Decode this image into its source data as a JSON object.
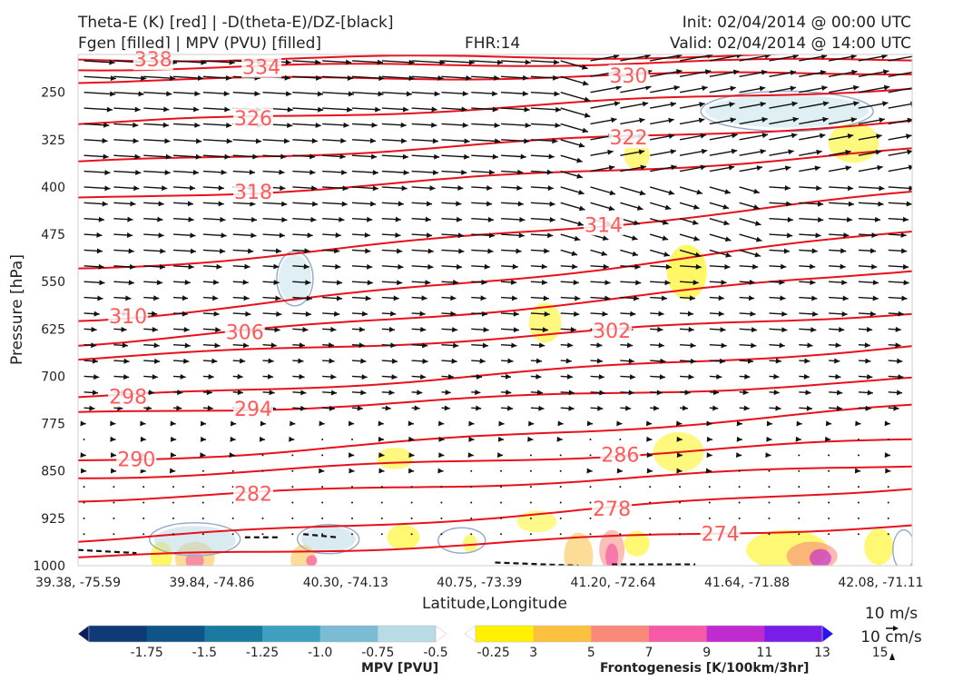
{
  "header": {
    "line1_left": "Theta-E (K) [red] | -D(theta-E)/DZ-[black]",
    "line2_left": "Fgen [filled] | MPV (PVU) [filled]",
    "fhr": "FHR:14",
    "init": "Init: 02/04/2014 @ 00:00 UTC",
    "valid": "Valid: 02/04/2014 @ 14:00 UTC"
  },
  "chart_data": {
    "type": "cross-section",
    "xlabel": "Latitude,Longitude",
    "ylabel": "Pressure [hPa]",
    "x_ticks": [
      "39.38, -75.59",
      "39.84, -74.86",
      "40.30, -74.13",
      "40.75, -73.39",
      "41.20, -72.64",
      "41.64, -71.88",
      "42.08, -71.11"
    ],
    "y_ticks": [
      250,
      325,
      400,
      475,
      550,
      625,
      700,
      775,
      850,
      925,
      1000
    ],
    "y_range": [
      1000,
      190
    ],
    "theta_e_contours": [
      {
        "value": 338,
        "label": "338"
      },
      {
        "value": 334,
        "label": "334"
      },
      {
        "value": 330,
        "label": "330"
      },
      {
        "value": 326,
        "label": "326"
      },
      {
        "value": 322,
        "label": "322"
      },
      {
        "value": 318,
        "label": "318"
      },
      {
        "value": 314,
        "label": "314"
      },
      {
        "value": 310,
        "label": "310"
      },
      {
        "value": 306,
        "label": "306"
      },
      {
        "value": 302,
        "label": "302"
      },
      {
        "value": 298,
        "label": "298"
      },
      {
        "value": 294,
        "label": "294"
      },
      {
        "value": 290,
        "label": "290"
      },
      {
        "value": 286,
        "label": "286"
      },
      {
        "value": 282,
        "label": "282"
      },
      {
        "value": 278,
        "label": "278"
      },
      {
        "value": 274,
        "label": "274"
      }
    ],
    "mpv_colorbar": {
      "title": "MPV [PVU]",
      "ticks": [
        "-1.75",
        "-1.5",
        "-1.25",
        "-1.0",
        "-0.75",
        "-0.5",
        "-0.25"
      ],
      "colors": [
        "#0b1e5e",
        "#0e3a78",
        "#0f5488",
        "#1a7aa0",
        "#3e9fc0",
        "#7bbcd4",
        "#b9dbe6",
        "#ffffff"
      ]
    },
    "fgen_colorbar": {
      "title": "Frontogenesis [K/100km/3hr]",
      "ticks": [
        "3",
        "5",
        "7",
        "9",
        "11",
        "13",
        "15"
      ],
      "colors": [
        "#ffffff",
        "#fff200",
        "#fcc040",
        "#f98a7a",
        "#f55aa6",
        "#c02bd0",
        "#7a1de6",
        "#2a12f0"
      ]
    },
    "wind_key": {
      "horizontal": "10 m/s",
      "vertical": "10 cm/s"
    }
  }
}
